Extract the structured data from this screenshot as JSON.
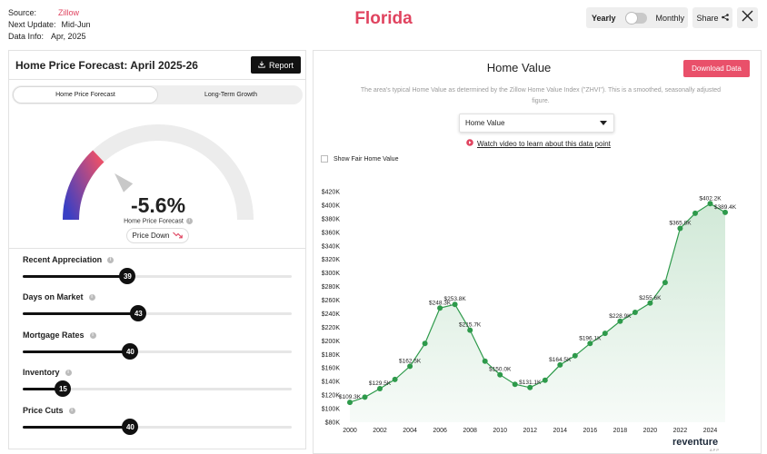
{
  "meta": {
    "source_label": "Source:",
    "source_value": "Zillow",
    "update_label": "Next Update:",
    "update_value": "Mid-Jun",
    "info_label": "Data Info:",
    "info_value": "Apr, 2025"
  },
  "title": "Florida",
  "controls": {
    "yearly_label": "Yearly",
    "monthly_label": "Monthly",
    "share_label": "Share"
  },
  "left": {
    "heading": "Home Price Forecast: April 2025-26",
    "report_label": "Report",
    "tabs": [
      {
        "label": "Home Price Forecast",
        "active": true
      },
      {
        "label": "Long-Term Growth",
        "active": false
      }
    ],
    "gauge": {
      "value_text": "-5.6%",
      "subtitle": "Home Price Forecast",
      "status": "Price Down",
      "level": 0.26
    },
    "sliders": [
      {
        "label": "Recent Appreciation",
        "value": 39
      },
      {
        "label": "Days on Market",
        "value": 43
      },
      {
        "label": "Mortgage Rates",
        "value": 40
      },
      {
        "label": "Inventory",
        "value": 15
      },
      {
        "label": "Price Cuts",
        "value": 40
      }
    ]
  },
  "right": {
    "heading": "Home Value",
    "download_label": "Download Data",
    "description": "The area's typical Home Value as determined by the Zillow Home Value Index (\"ZHVI\"). This is a smoothed, seasonally adjusted figure.",
    "select_value": "Home Value",
    "watch_link": "Watch video to learn about this data point",
    "fair_label": "Show Fair Home Value",
    "brand": "reventure",
    "brand_sub": "APP"
  },
  "colors": {
    "accent": "#e0435f",
    "line": "#2e9a4b",
    "fill": "#e5f4e8",
    "gauge_start": "#3a3fc4",
    "gauge_end": "#e9506a"
  },
  "icons": {
    "share": "share-icon",
    "close": "close-icon",
    "download": "download-icon",
    "play": "play-icon",
    "trend_down": "trend-down-icon",
    "info": "info-icon"
  },
  "chart_data": {
    "type": "area",
    "title": "",
    "xlabel": "",
    "ylabel": "",
    "x": [
      2000,
      2001,
      2002,
      2003,
      2004,
      2005,
      2006,
      2007,
      2008,
      2009,
      2010,
      2011,
      2012,
      2013,
      2014,
      2015,
      2016,
      2017,
      2018,
      2019,
      2020,
      2021,
      2022,
      2023,
      2024,
      2025
    ],
    "values": [
      109300,
      117000,
      129500,
      143000,
      162500,
      196000,
      248300,
      253800,
      215700,
      170000,
      150000,
      136000,
      131100,
      142000,
      164500,
      178000,
      196100,
      211000,
      228900,
      242000,
      255600,
      286000,
      365800,
      388000,
      402200,
      389400
    ],
    "labels": {
      "2000": "$109.3K",
      "2002": "$129.5K",
      "2004": "$162.5K",
      "2006": "$248.3K",
      "2007": "$253.8K",
      "2008": "$215.7K",
      "2010": "$150.0K",
      "2012": "$131.1K",
      "2014": "$164.5K",
      "2016": "$196.1K",
      "2018": "$228.9K",
      "2020": "$255.6K",
      "2022": "$365.8K",
      "2024": "$402.2K",
      "2025": "$389.4K"
    },
    "x_ticks": [
      "2000",
      "2002",
      "2004",
      "2006",
      "2008",
      "2010",
      "2012",
      "2014",
      "2016",
      "2018",
      "2020",
      "2022",
      "2024"
    ],
    "y_ticks": [
      "$80K",
      "$100K",
      "$120K",
      "$140K",
      "$160K",
      "$180K",
      "$200K",
      "$220K",
      "$240K",
      "$260K",
      "$280K",
      "$300K",
      "$320K",
      "$340K",
      "$360K",
      "$380K",
      "$400K",
      "$420K"
    ],
    "ylim": [
      80000,
      420000
    ],
    "xlim": [
      2000,
      2025
    ],
    "grid": false,
    "legend": "none"
  }
}
